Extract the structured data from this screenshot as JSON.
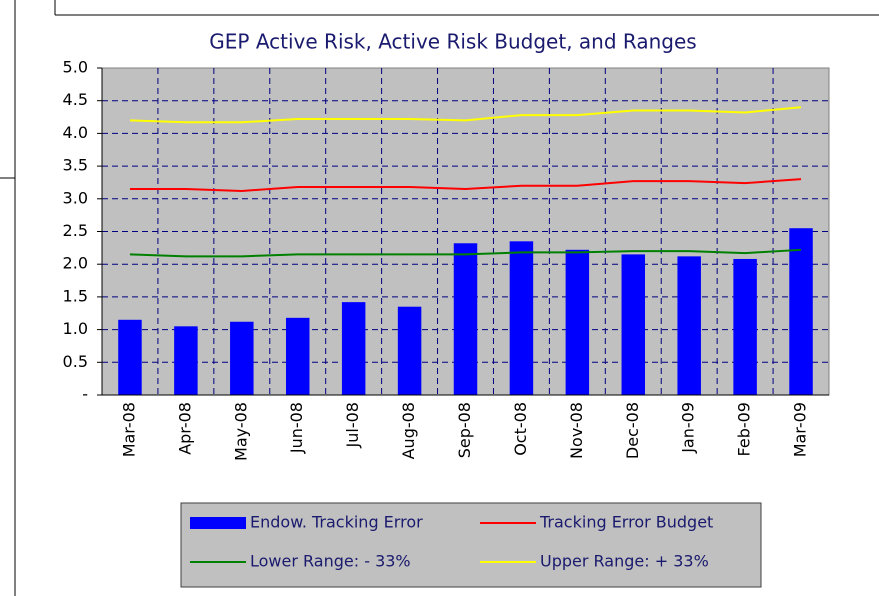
{
  "chart_data": {
    "type": "bar_line",
    "title": "GEP Active Risk, Active Risk Budget, and Ranges",
    "categories": [
      "Mar-08",
      "Apr-08",
      "May-08",
      "Jun-08",
      "Jul-08",
      "Aug-08",
      "Sep-08",
      "Oct-08",
      "Nov-08",
      "Dec-08",
      "Jan-09",
      "Feb-09",
      "Mar-09"
    ],
    "series": [
      {
        "name": "Endow. Tracking Error",
        "type": "bar",
        "color": "#0000ff",
        "values": [
          1.15,
          1.05,
          1.12,
          1.18,
          1.42,
          1.35,
          2.32,
          2.35,
          2.22,
          2.15,
          2.12,
          2.08,
          2.55
        ]
      },
      {
        "name": "Tracking Error Budget",
        "type": "line",
        "color": "#ff0000",
        "values": [
          3.15,
          3.15,
          3.12,
          3.18,
          3.18,
          3.18,
          3.15,
          3.2,
          3.2,
          3.27,
          3.27,
          3.24,
          3.3
        ]
      },
      {
        "name": "Lower Range: - 33%",
        "type": "line",
        "color": "#008000",
        "values": [
          2.15,
          2.12,
          2.12,
          2.15,
          2.15,
          2.15,
          2.15,
          2.18,
          2.18,
          2.2,
          2.2,
          2.17,
          2.22
        ]
      },
      {
        "name": "Upper Range: + 33%",
        "type": "line",
        "color": "#ffff00",
        "values": [
          4.2,
          4.17,
          4.17,
          4.22,
          4.22,
          4.22,
          4.2,
          4.28,
          4.28,
          4.35,
          4.35,
          4.32,
          4.4
        ]
      }
    ],
    "ylim": [
      0,
      5
    ],
    "yticks": [
      {
        "value": 0,
        "label": "-"
      },
      {
        "value": 0.5,
        "label": "0.5"
      },
      {
        "value": 1,
        "label": "1.0"
      },
      {
        "value": 1.5,
        "label": "1.5"
      },
      {
        "value": 2,
        "label": "2.0"
      },
      {
        "value": 2.5,
        "label": "2.5"
      },
      {
        "value": 3,
        "label": "3.0"
      },
      {
        "value": 3.5,
        "label": "3.5"
      },
      {
        "value": 4,
        "label": "4.0"
      },
      {
        "value": 4.5,
        "label": "4.5"
      },
      {
        "value": 5,
        "label": "5.0"
      }
    ],
    "grid": true,
    "legend": "bottom"
  }
}
